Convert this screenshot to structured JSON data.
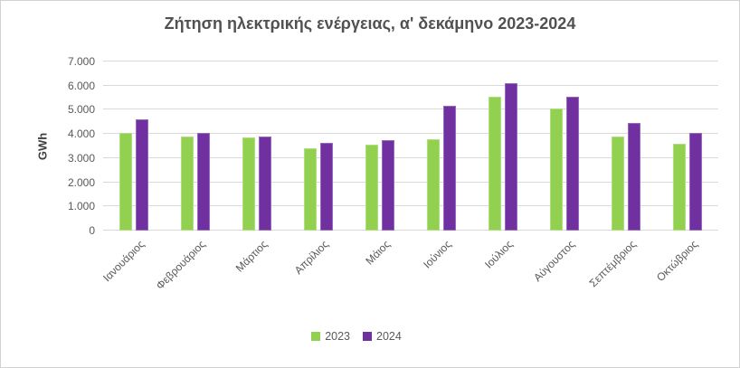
{
  "chart_data": {
    "type": "bar",
    "title": "Ζήτηση ηλεκτρικής ενέργειας, α' δεκάμηνο 2023-2024",
    "xlabel": "",
    "ylabel": "GWh",
    "ylim": [
      0,
      7000
    ],
    "grid": true,
    "legend_position": "bottom",
    "yticks": [
      {
        "value": 0,
        "label": "0"
      },
      {
        "value": 1000,
        "label": "1.000"
      },
      {
        "value": 2000,
        "label": "2.000"
      },
      {
        "value": 3000,
        "label": "3.000"
      },
      {
        "value": 4000,
        "label": "4.000"
      },
      {
        "value": 5000,
        "label": "5.000"
      },
      {
        "value": 6000,
        "label": "6.000"
      },
      {
        "value": 7000,
        "label": "7.000"
      }
    ],
    "categories": [
      "Ιανουάριος",
      "Φεβρουάριος",
      "Μάρτιος",
      "Απρίλιος",
      "Μάιος",
      "Ιούνιος",
      "Ιούλιος",
      "Αύγουστος",
      "Σεπτέμβριος",
      "Οκτώβριος"
    ],
    "series": [
      {
        "name": "2023",
        "color": "#92D050",
        "values": [
          4050,
          3900,
          3850,
          3400,
          3550,
          3800,
          5550,
          5050,
          3900,
          3600
        ]
      },
      {
        "name": "2024",
        "color": "#7030A0",
        "values": [
          4600,
          4050,
          3900,
          3650,
          3750,
          5150,
          6100,
          5550,
          4450,
          4050
        ]
      }
    ]
  },
  "colors": {
    "gridline": "#d9d9d9",
    "axis_text": "#595959",
    "title_text": "#515151",
    "frame_border": "#d2d2d2"
  }
}
